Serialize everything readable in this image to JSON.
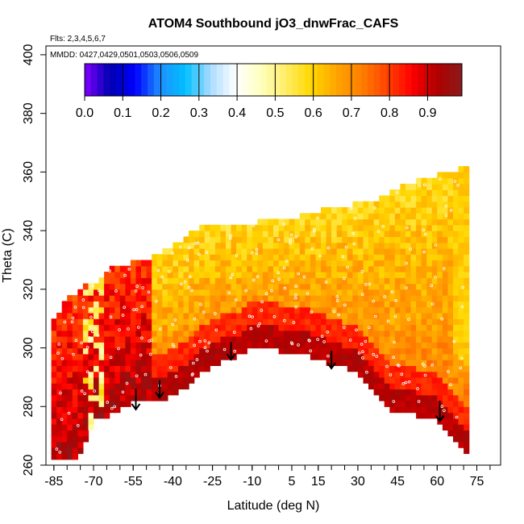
{
  "chart_data": {
    "type": "heatmap",
    "title": "ATOM4 Southbound jO3_dnwFrac_CAFS",
    "flights_label": "Flts: 2,3,4,5,6,7",
    "dates_label": "MMDD: 0427,0429,0501,0503,0506,0509",
    "xlabel": "Latitude (deg N)",
    "ylabel": "Theta (C)",
    "xlim": [
      -88,
      84
    ],
    "ylim": [
      260,
      403
    ],
    "x_ticks": [
      -85,
      -70,
      -55,
      -40,
      -25,
      -10,
      5,
      15,
      30,
      45,
      60,
      75
    ],
    "x_minor_step": 5,
    "y_ticks": [
      260,
      280,
      300,
      320,
      340,
      360,
      380,
      400
    ],
    "colorbar": {
      "min": 0.0,
      "max": 0.99,
      "tick_values": [
        0.0,
        0.1,
        0.2,
        0.3,
        0.4,
        0.5,
        0.6,
        0.7,
        0.8,
        0.9
      ],
      "tick_labels": [
        "0.0",
        "0.1",
        "0.2",
        "0.3",
        "0.4",
        "0.5",
        "0.6",
        "0.7",
        "0.8",
        "0.9"
      ],
      "colors": [
        "#8000ff",
        "#0000b0",
        "#0000ff",
        "#1e90ff",
        "#00bfff",
        "#aadcff",
        "#ffffff",
        "#ffffc0",
        "#ffee66",
        "#ffd700",
        "#ffa500",
        "#ff7f00",
        "#ff4500",
        "#ff0000",
        "#b00000",
        "#8b1a1a"
      ]
    },
    "bottom_boundary": [
      [
        -78,
        262
      ],
      [
        -74,
        266
      ],
      [
        -70,
        276
      ],
      [
        -66,
        277
      ],
      [
        -62,
        279
      ],
      [
        -58,
        281
      ],
      [
        -52,
        283
      ],
      [
        -44,
        283
      ],
      [
        -36,
        287
      ],
      [
        -28,
        293
      ],
      [
        -20,
        297
      ],
      [
        -15,
        298
      ],
      [
        -10,
        301
      ],
      [
        0,
        300
      ],
      [
        10,
        299
      ],
      [
        18,
        296
      ],
      [
        25,
        294
      ],
      [
        32,
        291
      ],
      [
        40,
        282
      ],
      [
        44,
        278
      ],
      [
        50,
        279
      ],
      [
        55,
        277
      ],
      [
        60,
        276
      ],
      [
        66,
        271
      ],
      [
        70,
        265
      ],
      [
        72,
        264
      ]
    ],
    "top_boundary": [
      [
        72,
        362
      ],
      [
        70,
        361
      ],
      [
        64,
        359
      ],
      [
        56,
        357
      ],
      [
        48,
        355
      ],
      [
        38,
        350
      ],
      [
        28,
        348
      ],
      [
        16,
        346
      ],
      [
        4,
        343
      ],
      [
        -8,
        342
      ],
      [
        -20,
        341
      ],
      [
        -30,
        340
      ],
      [
        -40,
        334
      ],
      [
        -48,
        330
      ],
      [
        -52,
        329
      ],
      [
        -56,
        328
      ],
      [
        -60,
        328
      ],
      [
        -64,
        327
      ],
      [
        -68,
        322
      ],
      [
        -72,
        321
      ],
      [
        -76,
        318
      ],
      [
        -80,
        316
      ],
      [
        -82,
        314
      ],
      [
        -84,
        310
      ],
      [
        -86,
        298
      ],
      [
        -86,
        280
      ],
      [
        -84,
        273
      ],
      [
        -80,
        270
      ],
      [
        -78,
        262
      ]
    ],
    "field_description": "jO3 downward fraction, high values (~0.9) near low theta and southern high latitudes, mid values (~0.6-0.75) aloft",
    "arrows": [
      {
        "lat": -54,
        "theta_start": 286,
        "theta_end": 279
      },
      {
        "lat": -45,
        "theta_start": 289,
        "theta_end": 283
      },
      {
        "lat": -18,
        "theta_start": 302,
        "theta_end": 296
      },
      {
        "lat": 20,
        "theta_start": 299,
        "theta_end": 293
      },
      {
        "lat": 61,
        "theta_start": 282,
        "theta_end": 275
      }
    ]
  }
}
